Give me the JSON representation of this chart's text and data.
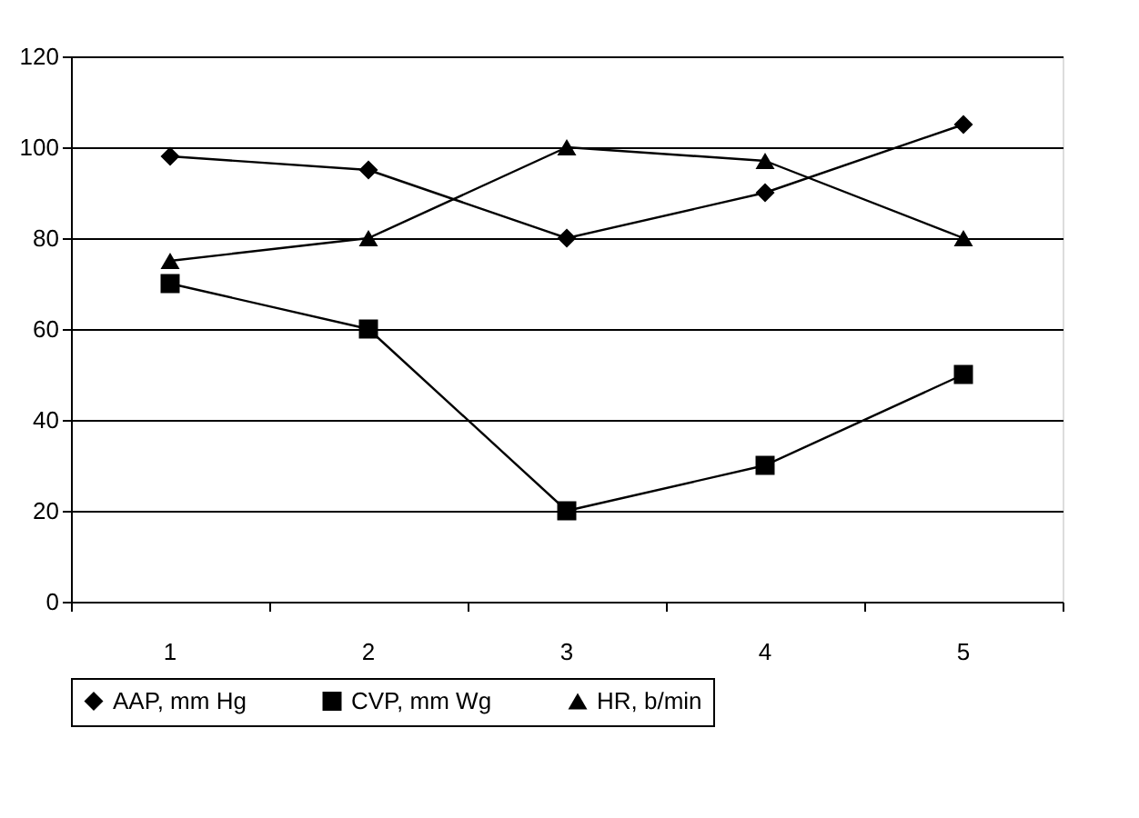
{
  "chart_data": {
    "type": "line",
    "categories": [
      "1",
      "2",
      "3",
      "4",
      "5"
    ],
    "series": [
      {
        "name": "AAP, mm Hg",
        "color": "#000000",
        "marker": "diamond",
        "values": [
          98,
          95,
          80,
          90,
          105
        ]
      },
      {
        "name": "CVP, mm Wg",
        "color": "#000000",
        "marker": "square",
        "values": [
          70,
          60,
          20,
          30,
          50
        ]
      },
      {
        "name": "HR, b/min",
        "color": "#000000",
        "marker": "triangle",
        "values": [
          75,
          80,
          100,
          97,
          80
        ]
      }
    ],
    "ylim": [
      0,
      120
    ],
    "yticks": [
      0,
      20,
      40,
      60,
      80,
      100,
      120
    ],
    "grid": "y",
    "legend": "bottom",
    "line_style": "solid"
  }
}
